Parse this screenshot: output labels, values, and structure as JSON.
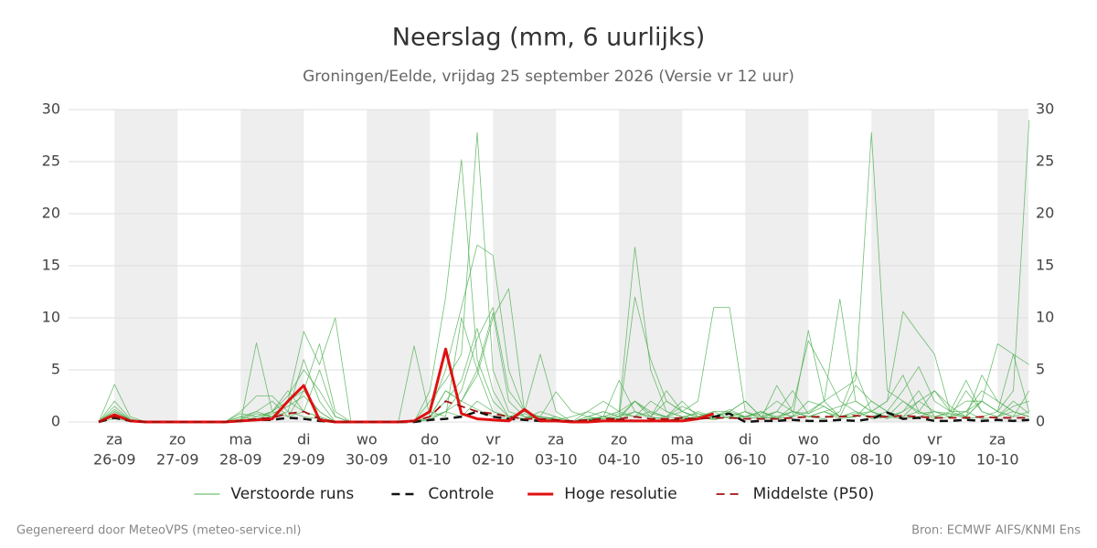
{
  "chart_data": {
    "type": "line",
    "title": "Neerslag (mm, 6 uurlijks)",
    "subtitle": "Groningen/Eelde, vrijdag 25 september 2026 (Versie vr 12 uur)",
    "footer_left": "Gegenereerd door MeteoVPS (meteo-service.nl)",
    "footer_right": "Bron: ECMWF AIFS/KNMI Ens",
    "categories": [
      null,
      "26-09",
      null,
      null,
      null,
      "27-09",
      null,
      null,
      null,
      "28-09",
      null,
      null,
      null,
      "29-09",
      null,
      null,
      null,
      "30-09",
      null,
      null,
      null,
      "01-10",
      null,
      null,
      null,
      "02-10",
      null,
      null,
      null,
      "03-10",
      null,
      null,
      null,
      "04-10",
      null,
      null,
      null,
      "05-10",
      null,
      null,
      null,
      "06-10",
      null,
      null,
      null,
      "07-10",
      null,
      null,
      null,
      "08-10",
      null,
      null,
      null,
      "09-10",
      null,
      null,
      null,
      "10-10",
      null,
      null
    ],
    "weekdays": [
      null,
      "za",
      null,
      null,
      null,
      "zo",
      null,
      null,
      null,
      "ma",
      null,
      null,
      null,
      "di",
      null,
      null,
      null,
      "wo",
      null,
      null,
      null,
      "do",
      null,
      null,
      null,
      "vr",
      null,
      null,
      null,
      "za",
      null,
      null,
      null,
      "zo",
      null,
      null,
      null,
      "ma",
      null,
      null,
      null,
      "di",
      null,
      null,
      null,
      "wo",
      null,
      null,
      null,
      "do",
      null,
      null,
      null,
      "vr",
      null,
      null,
      null,
      "za",
      null,
      null
    ],
    "ylim": [
      0,
      30
    ],
    "yticks": [
      0,
      5,
      10,
      15,
      20,
      25,
      30
    ],
    "grid": true,
    "legend": "bottom",
    "series": [
      {
        "name": "Verstoorde runs",
        "color": "#4caf50",
        "line_style": "solid",
        "linewidth": 0.8,
        "runs": [
          [
            0,
            0.5,
            0.1,
            0,
            0,
            0,
            0,
            0,
            0,
            0,
            0.3,
            0.8,
            1.5,
            2.5,
            1,
            0,
            0,
            0,
            0,
            0,
            0,
            0.5,
            3,
            2,
            1.2,
            0.5,
            0.3,
            0.8,
            0.2,
            0,
            0,
            0.2,
            0.5,
            1,
            2,
            0.5,
            0.2,
            0.3,
            0.5,
            0.2,
            0.5,
            1,
            0.3,
            0.5,
            1,
            0.8,
            2,
            3,
            4,
            27.8,
            3,
            2,
            1,
            0.5,
            0.8,
            0.3,
            0.5,
            1,
            3,
            29
          ],
          [
            0,
            1.5,
            0.2,
            0,
            0,
            0,
            0,
            0,
            0,
            0.5,
            0.2,
            1,
            2.5,
            5,
            3,
            0.5,
            0,
            0,
            0,
            0,
            0,
            2,
            4,
            6.5,
            27.8,
            5,
            1,
            0.5,
            0.3,
            0.2,
            0.5,
            1,
            0.5,
            0.3,
            2,
            0.8,
            0.5,
            1.5,
            0.8,
            0.5,
            1.2,
            0.5,
            0.3,
            1,
            0.5,
            2,
            1.5,
            0.5,
            0.8,
            1,
            2,
            4.5,
            1,
            3,
            1.5,
            0.5,
            2,
            1,
            0.5,
            1
          ],
          [
            0,
            3.6,
            0.5,
            0,
            0,
            0,
            0,
            0,
            0,
            1,
            2.5,
            2.5,
            1,
            6,
            2,
            0,
            0,
            0,
            0,
            0,
            0,
            3,
            12,
            25.2,
            6,
            2,
            0.5,
            0.3,
            0.5,
            0.2,
            0,
            0.3,
            0.5,
            4,
            1,
            0.5,
            2,
            1,
            0.5,
            1,
            0.3,
            0.5,
            0.8,
            2,
            1,
            0.5,
            1,
            0.3,
            0.5,
            2,
            1,
            3,
            5.3,
            2,
            1,
            4,
            1,
            0.5,
            2,
            0.8
          ],
          [
            0,
            1,
            0.2,
            0,
            0,
            0,
            0,
            0,
            0,
            0,
            0.5,
            1,
            3,
            1,
            0.5,
            0,
            0,
            0,
            0,
            0,
            0,
            1,
            5,
            11,
            17,
            16,
            5,
            1,
            0.5,
            0.3,
            0,
            0,
            0.5,
            1,
            0.5,
            2,
            1,
            0.5,
            0.3,
            0.5,
            1,
            2,
            0.5,
            1,
            3,
            0.8,
            1.5,
            0.5,
            1,
            0.3,
            0.5,
            2,
            0.8,
            1,
            0.5,
            3,
            1,
            0.5,
            1.5,
            2
          ],
          [
            0,
            2,
            0.3,
            0,
            0,
            0,
            0,
            0,
            0,
            0.2,
            0.8,
            0.5,
            2,
            3,
            7.5,
            1,
            0,
            0,
            0,
            0,
            0,
            0.5,
            2,
            4,
            9,
            3,
            0.5,
            1,
            0.2,
            0.5,
            0,
            1,
            2,
            1,
            16.8,
            5,
            1,
            0.5,
            0.8,
            0.3,
            0.5,
            0.5,
            1,
            0.3,
            0.5,
            1,
            2,
            0.5,
            0.5,
            1,
            0.3,
            1,
            2,
            1,
            0.8,
            0.5,
            2,
            1,
            0.5,
            3
          ],
          [
            0,
            0.8,
            0.1,
            0,
            0,
            0,
            0,
            0,
            0,
            0.3,
            1,
            2,
            0.5,
            1,
            5,
            0.5,
            0,
            0,
            0,
            0,
            0,
            1,
            0.5,
            10,
            5,
            10.5,
            2,
            0.5,
            0.5,
            0.2,
            0,
            0.5,
            1,
            0.5,
            12,
            6,
            2,
            1,
            2,
            11,
            11,
            1,
            0.5,
            0.3,
            1,
            0.5,
            1,
            1.5,
            2,
            1,
            0.5,
            0.3,
            0.5,
            1,
            0.5,
            1,
            0.3,
            0.5,
            1,
            0.5
          ],
          [
            0,
            1.2,
            0.2,
            0,
            0,
            0,
            0,
            0,
            0,
            0.5,
            1,
            0.5,
            2,
            8.7,
            5.5,
            10,
            0,
            0,
            0,
            0,
            0,
            0.2,
            1,
            3,
            8,
            11,
            3,
            1,
            0.5,
            0.3,
            0,
            0.3,
            0.5,
            0.2,
            1,
            0.5,
            3,
            1,
            0.5,
            0.3,
            0.5,
            1,
            0.3,
            3.5,
            1,
            0.5,
            0.3,
            1,
            4.8,
            1,
            0.5,
            1,
            3,
            0.5,
            1,
            0.5,
            4.5,
            2,
            1,
            0.5
          ],
          [
            0,
            0.6,
            0.1,
            0,
            0,
            0,
            0,
            0,
            0,
            0,
            7.6,
            1,
            2,
            1,
            0.5,
            0,
            0,
            0,
            0,
            0,
            7.3,
            0.5,
            3,
            2,
            4.5,
            10,
            12.8,
            1,
            6.5,
            1,
            0,
            0.2,
            0.3,
            0.5,
            1,
            0.3,
            0.5,
            1,
            0.3,
            0.5,
            1,
            0.5,
            1,
            0.3,
            1.5,
            7.8,
            5,
            2,
            1,
            0.5,
            1,
            0.5,
            1,
            0.3,
            0.5,
            1,
            2,
            1,
            6.5,
            1
          ],
          [
            0,
            1,
            0.2,
            0,
            0,
            0,
            0,
            0,
            0,
            0.8,
            0.5,
            1,
            0.5,
            3,
            1,
            0,
            0,
            0,
            0,
            0,
            0,
            0.5,
            1,
            2,
            5,
            1,
            0.5,
            0.3,
            1,
            0.5,
            0,
            0.5,
            1,
            0.5,
            2,
            1,
            0.5,
            2,
            0.5,
            1,
            1,
            2,
            0.5,
            1,
            0.5,
            8.8,
            2,
            11.8,
            2,
            1,
            2,
            10.6,
            8.5,
            6.5,
            1,
            1,
            3,
            2,
            1,
            0.5
          ],
          [
            0,
            0.3,
            0.1,
            0,
            0,
            0,
            0,
            0,
            0,
            0,
            0.3,
            0.5,
            1,
            0.5,
            0.3,
            0,
            0,
            0,
            0,
            0,
            0,
            0.3,
            1,
            0.5,
            2,
            1,
            0.5,
            0.3,
            0.5,
            2.9,
            1,
            0.5,
            0.3,
            0.8,
            0.5,
            1,
            0.5,
            0.3,
            1,
            0.5,
            0.8,
            0.5,
            1,
            0.5,
            1,
            0.5,
            1,
            0.5,
            3.5,
            2,
            1,
            0.5,
            2,
            3,
            1,
            2,
            2,
            7.5,
            6.5,
            5.5
          ]
        ]
      },
      {
        "name": "Controle",
        "color": "#111111",
        "line_style": "dashed",
        "linewidth": 2.5,
        "values": [
          0,
          0.4,
          0.1,
          0,
          0,
          0,
          0,
          0,
          0,
          0.1,
          0.2,
          0.2,
          0.4,
          0.3,
          0.1,
          0,
          0,
          0,
          0,
          0,
          0,
          0.2,
          0.3,
          0.5,
          1,
          0.5,
          0.3,
          0.2,
          0.1,
          0.1,
          0,
          0.1,
          0.1,
          0.2,
          0.1,
          0.1,
          0.1,
          0.2,
          0.3,
          0.5,
          0.8,
          0,
          0.1,
          0.1,
          0.2,
          0.1,
          0.1,
          0.2,
          0.1,
          0.3,
          0.9,
          0.3,
          0.4,
          0.1,
          0.1,
          0.2,
          0.1,
          0.2,
          0.1,
          0.2
        ]
      },
      {
        "name": "Hoge resolutie",
        "color": "#e01010",
        "line_style": "solid",
        "linewidth": 3,
        "values": [
          0,
          0.7,
          0.1,
          0,
          0,
          0,
          0,
          0,
          0,
          0.1,
          0.2,
          0.3,
          2,
          3.5,
          0.2,
          0,
          0,
          0,
          0,
          0,
          0.1,
          1,
          7,
          0.8,
          0.3,
          0.2,
          0.1,
          1.2,
          0.1,
          0.1,
          0,
          0,
          0.1,
          0.1,
          0.1,
          0.1,
          0.1,
          0.1,
          0.3,
          0.8,
          null,
          null,
          null,
          null,
          null,
          null,
          null,
          null,
          null,
          null,
          null,
          null,
          null,
          null,
          null,
          null,
          null,
          null,
          null,
          null
        ]
      },
      {
        "name": "Middelste (P50)",
        "color": "#a01010",
        "line_style": "dashed",
        "linewidth": 1.8,
        "values": [
          0,
          0.5,
          0.1,
          0,
          0,
          0,
          0,
          0,
          0,
          0.1,
          0.3,
          0.4,
          0.8,
          1,
          0.3,
          0,
          0,
          0,
          0,
          0,
          0.1,
          0.5,
          2,
          1.5,
          1,
          0.8,
          0.5,
          0.3,
          0.3,
          0.2,
          0.1,
          0.2,
          0.3,
          0.3,
          0.5,
          0.3,
          0.3,
          0.4,
          0.3,
          0.4,
          0.4,
          0.3,
          0.3,
          0.3,
          0.4,
          0.5,
          0.5,
          0.5,
          0.6,
          0.5,
          0.5,
          0.6,
          0.5,
          0.4,
          0.4,
          0.4,
          0.5,
          0.4,
          0.4,
          0.4
        ]
      }
    ]
  }
}
